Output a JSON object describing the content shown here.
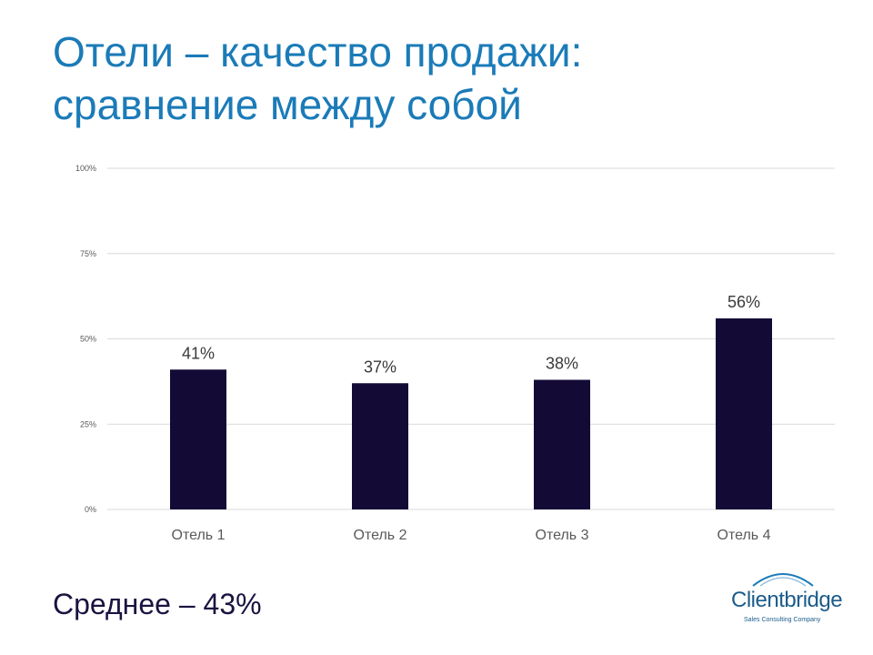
{
  "title": {
    "line1": "Отели – качество продажи:",
    "line2": "сравнение между собой"
  },
  "chart_data": {
    "type": "bar",
    "categories": [
      "Отель 1",
      "Отель 2",
      "Отель 3",
      "Отель 4"
    ],
    "values": [
      41,
      37,
      38,
      56
    ],
    "data_labels": [
      "41%",
      "37%",
      "38%",
      "56%"
    ],
    "y_ticks": [
      "0%",
      "25%",
      "50%",
      "75%",
      "100%"
    ],
    "ylim": [
      0,
      100
    ],
    "grid": true,
    "bar_color": "#130a36"
  },
  "summary": {
    "average": "Среднее – 43%"
  },
  "logo": {
    "name": "Clientbridge",
    "tagline": "Sales Consulting Company",
    "color": "#1b5c8c"
  },
  "colors": {
    "title": "#1b7bb8",
    "gridline": "#d9d9d9",
    "axis_text": "#595959"
  }
}
